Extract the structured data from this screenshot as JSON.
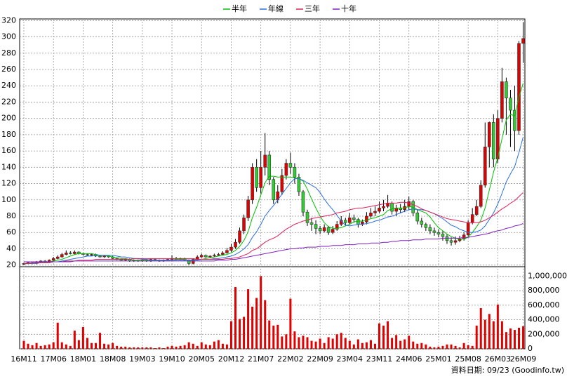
{
  "chart_data": [
    {
      "type": "candlestick",
      "categories": [
        "16M11",
        null,
        null,
        null,
        null,
        null,
        null,
        "17M06",
        null,
        null,
        null,
        null,
        null,
        null,
        "18M01",
        null,
        null,
        null,
        null,
        null,
        null,
        "18M08",
        null,
        null,
        null,
        null,
        null,
        null,
        "19M03",
        null,
        null,
        null,
        null,
        null,
        null,
        "19M10",
        null,
        null,
        null,
        null,
        null,
        null,
        "20M05",
        null,
        null,
        null,
        null,
        null,
        null,
        "20M12",
        null,
        null,
        null,
        null,
        null,
        null,
        "21M07",
        null,
        null,
        null,
        null,
        null,
        null,
        "22M02",
        null,
        null,
        null,
        null,
        null,
        null,
        "22M09",
        null,
        null,
        null,
        null,
        null,
        null,
        "23M04",
        null,
        null,
        null,
        null,
        null,
        null,
        "23M11",
        null,
        null,
        null,
        null,
        null,
        null,
        "24M06",
        null,
        null,
        null,
        null,
        null,
        null,
        "25M01",
        null,
        null,
        null,
        null,
        null,
        null,
        "25M08",
        null,
        null,
        null,
        null,
        null,
        null,
        "26M03",
        null,
        null,
        null,
        null,
        null,
        "26M09"
      ],
      "open": [
        21,
        22,
        23,
        22,
        24,
        25,
        24,
        26,
        28,
        30,
        33,
        35,
        34,
        36,
        34,
        33,
        32,
        33,
        31,
        30,
        31,
        30,
        28,
        27,
        26,
        27,
        25,
        26,
        25,
        26,
        25,
        27,
        26,
        25,
        26,
        27,
        28,
        27,
        28,
        26,
        22,
        27,
        30,
        32,
        30,
        31,
        32,
        33,
        35,
        38,
        42,
        48,
        62,
        78,
        100,
        140,
        115,
        140,
        155,
        125,
        100,
        110,
        130,
        145,
        140,
        128,
        110,
        85,
        72,
        70,
        65,
        62,
        66,
        60,
        64,
        70,
        75,
        72,
        78,
        76,
        70,
        73,
        80,
        84,
        86,
        90,
        92,
        96,
        86,
        90,
        88,
        92,
        98,
        84,
        74,
        70,
        66,
        62,
        60,
        58,
        55,
        50,
        48,
        50,
        52,
        57,
        72,
        82,
        92,
        118,
        165,
        195,
        150,
        200,
        245,
        225,
        210,
        185,
        292
      ],
      "high": [
        23,
        24,
        24,
        25,
        26,
        26,
        27,
        30,
        32,
        35,
        38,
        37,
        38,
        37,
        35,
        34,
        34,
        34,
        32,
        32,
        32,
        31,
        29,
        28,
        28,
        28,
        27,
        27,
        27,
        27,
        28,
        28,
        27,
        27,
        28,
        32,
        30,
        29,
        29,
        27,
        28,
        32,
        34,
        33,
        32,
        34,
        35,
        37,
        41,
        46,
        52,
        66,
        82,
        105,
        145,
        150,
        160,
        182,
        160,
        128,
        118,
        138,
        150,
        158,
        145,
        132,
        112,
        88,
        78,
        75,
        68,
        70,
        68,
        68,
        74,
        80,
        78,
        84,
        82,
        78,
        76,
        85,
        90,
        92,
        98,
        100,
        106,
        98,
        94,
        95,
        100,
        104,
        100,
        88,
        78,
        72,
        70,
        66,
        64,
        62,
        58,
        54,
        55,
        56,
        60,
        75,
        90,
        100,
        124,
        195,
        196,
        205,
        210,
        262,
        250,
        235,
        240,
        295,
        318
      ],
      "low": [
        20,
        21,
        21,
        21,
        23,
        23,
        23,
        25,
        27,
        29,
        32,
        33,
        33,
        33,
        32,
        31,
        31,
        30,
        29,
        29,
        29,
        27,
        26,
        25,
        25,
        24,
        24,
        24,
        24,
        24,
        24,
        25,
        24,
        24,
        25,
        26,
        26,
        26,
        25,
        20,
        21,
        26,
        29,
        29,
        29,
        30,
        31,
        32,
        34,
        36,
        40,
        46,
        58,
        74,
        95,
        110,
        108,
        130,
        118,
        95,
        96,
        106,
        125,
        132,
        120,
        105,
        80,
        68,
        62,
        58,
        58,
        60,
        57,
        58,
        62,
        68,
        68,
        70,
        72,
        66,
        68,
        70,
        78,
        80,
        84,
        86,
        90,
        82,
        80,
        84,
        85,
        88,
        80,
        70,
        66,
        62,
        58,
        56,
        54,
        50,
        46,
        44,
        45,
        48,
        50,
        55,
        70,
        80,
        90,
        115,
        140,
        140,
        145,
        195,
        180,
        165,
        160,
        180,
        268
      ],
      "close": [
        22,
        23,
        22,
        24,
        25,
        24,
        26,
        28,
        30,
        33,
        35,
        34,
        36,
        34,
        33,
        32,
        33,
        31,
        30,
        31,
        30,
        28,
        27,
        26,
        27,
        25,
        26,
        25,
        26,
        25,
        27,
        26,
        25,
        26,
        27,
        28,
        27,
        28,
        26,
        22,
        27,
        30,
        32,
        30,
        31,
        32,
        33,
        35,
        38,
        42,
        48,
        62,
        78,
        100,
        140,
        115,
        140,
        155,
        125,
        100,
        110,
        130,
        145,
        140,
        128,
        110,
        85,
        72,
        70,
        65,
        62,
        66,
        60,
        64,
        70,
        75,
        72,
        78,
        76,
        70,
        73,
        80,
        84,
        86,
        90,
        92,
        96,
        86,
        90,
        88,
        92,
        98,
        84,
        74,
        70,
        66,
        62,
        60,
        58,
        55,
        50,
        48,
        50,
        52,
        57,
        72,
        82,
        92,
        118,
        165,
        195,
        150,
        200,
        245,
        225,
        210,
        185,
        292,
        298
      ],
      "up_color": "#e00000",
      "down_color": "#33cc33",
      "series": [
        {
          "name": "半年",
          "color": "#00c000",
          "values": [
            22,
            22,
            22,
            23,
            23,
            23,
            24,
            25,
            26,
            27,
            29,
            31,
            33,
            34,
            34,
            34,
            34,
            33,
            32,
            32,
            31,
            30,
            29,
            28,
            28,
            27,
            26,
            26,
            26,
            26,
            26,
            26,
            26,
            26,
            26,
            26,
            27,
            27,
            27,
            26,
            26,
            27,
            27,
            28,
            29,
            30,
            31,
            32,
            33,
            35,
            38,
            43,
            50,
            61,
            78,
            91,
            106,
            121,
            129,
            129,
            128,
            128,
            128,
            128,
            127,
            126,
            123,
            113,
            101,
            90,
            80,
            72,
            67,
            65,
            65,
            66,
            68,
            70,
            73,
            74,
            74,
            75,
            77,
            78,
            80,
            82,
            87,
            89,
            90,
            90,
            90,
            92,
            91,
            88,
            86,
            84,
            79,
            72,
            66,
            62,
            58,
            55,
            53,
            52,
            52,
            54,
            60,
            67,
            75,
            90,
            112,
            134,
            152,
            175,
            198,
            205,
            203,
            226,
            243
          ]
        },
        {
          "name": "年線",
          "color": "#2a6ee0",
          "values": [
            22,
            22,
            22,
            22,
            23,
            23,
            23,
            24,
            24,
            25,
            26,
            27,
            28,
            29,
            30,
            31,
            31,
            32,
            32,
            32,
            32,
            32,
            31,
            30,
            30,
            29,
            28,
            28,
            27,
            27,
            26,
            26,
            26,
            26,
            26,
            26,
            26,
            26,
            26,
            26,
            26,
            26,
            27,
            27,
            27,
            28,
            28,
            29,
            30,
            31,
            33,
            36,
            40,
            45,
            54,
            61,
            70,
            80,
            87,
            93,
            100,
            107,
            114,
            121,
            126,
            126,
            124,
            121,
            118,
            115,
            109,
            101,
            94,
            88,
            81,
            74,
            69,
            68,
            69,
            70,
            70,
            71,
            72,
            74,
            75,
            77,
            79,
            80,
            82,
            84,
            86,
            88,
            89,
            88,
            88,
            87,
            85,
            83,
            80,
            77,
            73,
            69,
            67,
            64,
            62,
            60,
            60,
            61,
            63,
            68,
            76,
            84,
            95,
            108,
            122,
            132,
            141,
            158,
            177
          ]
        },
        {
          "name": "三年",
          "color": "#e0205a",
          "values": [
            22,
            22,
            23,
            23,
            23,
            23,
            23,
            24,
            24,
            24,
            25,
            25,
            25,
            26,
            26,
            26,
            26,
            27,
            27,
            27,
            27,
            27,
            27,
            27,
            27,
            27,
            28,
            28,
            28,
            28,
            28,
            28,
            28,
            28,
            28,
            28,
            28,
            28,
            28,
            28,
            28,
            27,
            27,
            27,
            27,
            27,
            27,
            27,
            28,
            28,
            29,
            30,
            32,
            34,
            38,
            40,
            44,
            48,
            51,
            53,
            56,
            60,
            64,
            67,
            70,
            72,
            74,
            75,
            77,
            78,
            79,
            80,
            81,
            82,
            84,
            85,
            86,
            88,
            89,
            90,
            90,
            91,
            92,
            93,
            94,
            95,
            96,
            96,
            96,
            97,
            97,
            96,
            94,
            92,
            89,
            87,
            85,
            83,
            81,
            79,
            77,
            76,
            75,
            74,
            73,
            72,
            72,
            72,
            73,
            75,
            78,
            81,
            85,
            89,
            92,
            96,
            99,
            104,
            109
          ]
        },
        {
          "name": "十年",
          "color": "#8020c0",
          "values": [
            24,
            24,
            24,
            24,
            24,
            24,
            24,
            24,
            24,
            24,
            24,
            24,
            25,
            25,
            25,
            25,
            25,
            25,
            25,
            25,
            25,
            25,
            25,
            25,
            25,
            25,
            25,
            25,
            25,
            25,
            25,
            25,
            25,
            25,
            25,
            25,
            25,
            25,
            25,
            25,
            25,
            25,
            25,
            25,
            25,
            25,
            26,
            26,
            26,
            27,
            27,
            28,
            29,
            30,
            31,
            32,
            33,
            34,
            35,
            36,
            37,
            38,
            39,
            40,
            40,
            41,
            41,
            42,
            42,
            42,
            43,
            43,
            43,
            44,
            44,
            44,
            45,
            45,
            45,
            46,
            46,
            46,
            47,
            47,
            47,
            48,
            48,
            49,
            49,
            50,
            50,
            50,
            51,
            51,
            51,
            52,
            52,
            52,
            52,
            53,
            53,
            53,
            53,
            53,
            54,
            54,
            55,
            56,
            57,
            58,
            59,
            61,
            62,
            63,
            65,
            66,
            68,
            69,
            71
          ]
        }
      ],
      "ylim": [
        18,
        322
      ],
      "yticks": [
        20,
        40,
        60,
        80,
        100,
        120,
        140,
        160,
        180,
        200,
        220,
        240,
        260,
        280,
        300,
        320
      ],
      "grid": true
    },
    {
      "type": "bar",
      "values": [
        110000,
        70000,
        50000,
        80000,
        40000,
        50000,
        60000,
        90000,
        360000,
        90000,
        60000,
        40000,
        250000,
        120000,
        300000,
        150000,
        80000,
        80000,
        220000,
        70000,
        60000,
        80000,
        40000,
        30000,
        30000,
        20000,
        20000,
        20000,
        20000,
        20000,
        20000,
        10000,
        20000,
        10000,
        30000,
        40000,
        30000,
        40000,
        50000,
        90000,
        70000,
        40000,
        90000,
        60000,
        50000,
        100000,
        120000,
        70000,
        60000,
        380000,
        850000,
        410000,
        440000,
        820000,
        580000,
        700000,
        1000000,
        670000,
        390000,
        320000,
        330000,
        170000,
        200000,
        690000,
        240000,
        160000,
        180000,
        160000,
        110000,
        100000,
        140000,
        80000,
        160000,
        140000,
        200000,
        220000,
        150000,
        110000,
        60000,
        130000,
        80000,
        90000,
        120000,
        70000,
        350000,
        320000,
        380000,
        150000,
        190000,
        110000,
        130000,
        180000,
        100000,
        70000,
        80000,
        60000,
        30000,
        20000,
        30000,
        40000,
        60000,
        60000,
        40000,
        20000,
        80000,
        50000,
        40000,
        320000,
        560000,
        400000,
        480000,
        380000,
        610000,
        380000,
        230000,
        280000,
        260000,
        290000,
        310000
      ],
      "color": "#e00000",
      "ylim": [
        0,
        1130000
      ],
      "yticks": [
        0,
        {
          "value": 200000,
          "label": "200,000"
        },
        {
          "value": 400000,
          "label": "400,000"
        },
        {
          "value": 600000,
          "label": "600,000"
        },
        {
          "value": 800000,
          "label": "800,000"
        },
        {
          "value": 1000000,
          "label": "1,000,000"
        }
      ],
      "grid": true
    }
  ],
  "footer": "資料日期: 09/23 (Goodinfo.tw)"
}
